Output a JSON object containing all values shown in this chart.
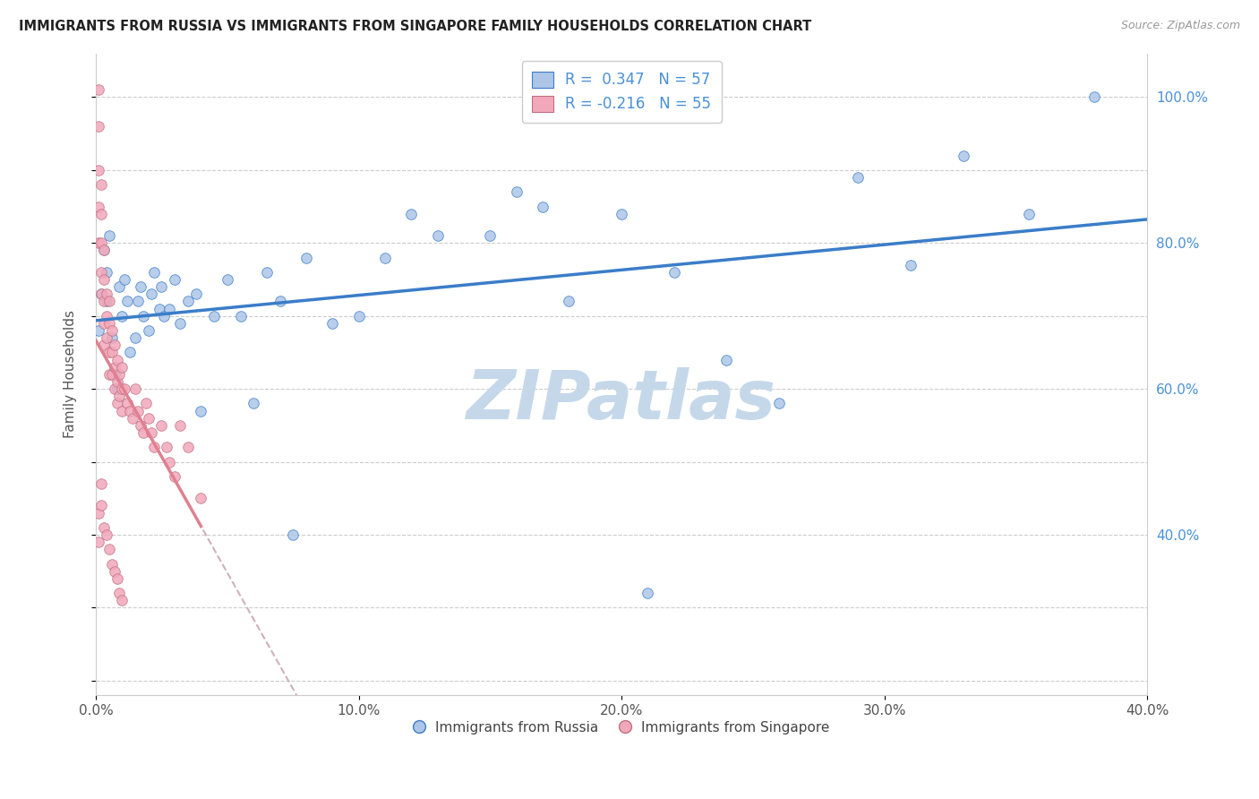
{
  "title": "IMMIGRANTS FROM RUSSIA VS IMMIGRANTS FROM SINGAPORE FAMILY HOUSEHOLDS CORRELATION CHART",
  "source_text": "Source: ZipAtlas.com",
  "ylabel": "Family Households",
  "legend_label_russia": "Immigrants from Russia",
  "legend_label_singapore": "Immigrants from Singapore",
  "R_russia": 0.347,
  "N_russia": 57,
  "R_singapore": -0.216,
  "N_singapore": 55,
  "xlim": [
    0.0,
    0.4
  ],
  "ylim": [
    0.18,
    1.06
  ],
  "xtick_vals": [
    0.0,
    0.1,
    0.2,
    0.3,
    0.4
  ],
  "xtick_labels": [
    "0.0%",
    "10.0%",
    "20.0%",
    "30.0%",
    "40.0%"
  ],
  "ytick_right_vals": [
    0.4,
    0.6,
    0.8,
    1.0
  ],
  "ytick_right_labels": [
    "40.0%",
    "60.0%",
    "80.0%",
    "100.0%"
  ],
  "color_russia": "#adc6e8",
  "color_singapore": "#f2a8bb",
  "trendline_russia_color": "#3a7dc9",
  "trendline_singapore_color": "#e08090",
  "trendline_singapore_dashed_color": "#d0b0bc",
  "watermark_text": "ZIPatlas",
  "watermark_color": "#c5d8ea",
  "background_color": "#ffffff",
  "russia_x": [
    0.001,
    0.002,
    0.003,
    0.004,
    0.004,
    0.005,
    0.006,
    0.007,
    0.008,
    0.009,
    0.01,
    0.011,
    0.012,
    0.013,
    0.015,
    0.016,
    0.017,
    0.018,
    0.02,
    0.021,
    0.022,
    0.024,
    0.025,
    0.026,
    0.028,
    0.03,
    0.032,
    0.035,
    0.038,
    0.04,
    0.045,
    0.05,
    0.055,
    0.06,
    0.065,
    0.07,
    0.075,
    0.08,
    0.09,
    0.1,
    0.11,
    0.12,
    0.13,
    0.15,
    0.16,
    0.17,
    0.18,
    0.2,
    0.21,
    0.22,
    0.24,
    0.26,
    0.29,
    0.31,
    0.33,
    0.355,
    0.38
  ],
  "russia_y": [
    0.68,
    0.73,
    0.79,
    0.76,
    0.72,
    0.81,
    0.67,
    0.62,
    0.6,
    0.74,
    0.7,
    0.75,
    0.72,
    0.65,
    0.67,
    0.72,
    0.74,
    0.7,
    0.68,
    0.73,
    0.76,
    0.71,
    0.74,
    0.7,
    0.71,
    0.75,
    0.69,
    0.72,
    0.73,
    0.57,
    0.7,
    0.75,
    0.7,
    0.58,
    0.76,
    0.72,
    0.4,
    0.78,
    0.69,
    0.7,
    0.78,
    0.84,
    0.81,
    0.81,
    0.87,
    0.85,
    0.72,
    0.84,
    0.32,
    0.76,
    0.64,
    0.58,
    0.89,
    0.77,
    0.92,
    0.84,
    1.0
  ],
  "singapore_x": [
    0.001,
    0.001,
    0.001,
    0.001,
    0.001,
    0.002,
    0.002,
    0.002,
    0.002,
    0.002,
    0.003,
    0.003,
    0.003,
    0.003,
    0.003,
    0.004,
    0.004,
    0.004,
    0.005,
    0.005,
    0.005,
    0.005,
    0.006,
    0.006,
    0.006,
    0.007,
    0.007,
    0.007,
    0.008,
    0.008,
    0.008,
    0.009,
    0.009,
    0.01,
    0.01,
    0.01,
    0.011,
    0.012,
    0.013,
    0.014,
    0.015,
    0.016,
    0.017,
    0.018,
    0.019,
    0.02,
    0.021,
    0.022,
    0.025,
    0.027,
    0.028,
    0.03,
    0.032,
    0.035,
    0.04
  ],
  "singapore_y": [
    1.01,
    0.96,
    0.9,
    0.85,
    0.8,
    0.88,
    0.84,
    0.8,
    0.76,
    0.73,
    0.79,
    0.75,
    0.72,
    0.69,
    0.66,
    0.73,
    0.7,
    0.67,
    0.72,
    0.69,
    0.65,
    0.62,
    0.68,
    0.65,
    0.62,
    0.66,
    0.63,
    0.6,
    0.64,
    0.61,
    0.58,
    0.62,
    0.59,
    0.63,
    0.6,
    0.57,
    0.6,
    0.58,
    0.57,
    0.56,
    0.6,
    0.57,
    0.55,
    0.54,
    0.58,
    0.56,
    0.54,
    0.52,
    0.55,
    0.52,
    0.5,
    0.48,
    0.55,
    0.52,
    0.45
  ],
  "singapore_extra_x": [
    0.001,
    0.001,
    0.002,
    0.002,
    0.003,
    0.004,
    0.005,
    0.006,
    0.007,
    0.008,
    0.009,
    0.01
  ],
  "singapore_extra_y": [
    0.43,
    0.39,
    0.47,
    0.44,
    0.41,
    0.4,
    0.38,
    0.36,
    0.35,
    0.34,
    0.32,
    0.31
  ]
}
